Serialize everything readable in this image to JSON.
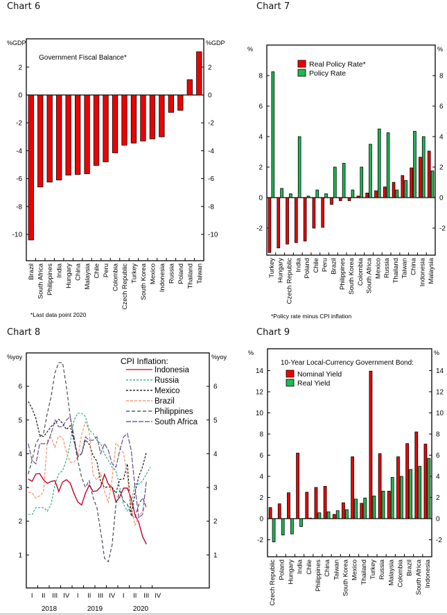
{
  "panels": {
    "chart6_title": "Chart 6",
    "chart7_title": "Chart 7",
    "chart8_title": "Chart 8",
    "chart9_title": "Chart 9"
  },
  "colors": {
    "red": "#ee0000",
    "green": "#1db954",
    "indonesia": "#c0002a",
    "russia": "#1aa37a",
    "mexico": "#000000",
    "brazil": "#f08a5a",
    "philippines": "#3a3a4a",
    "south_africa": "#5a3d8a"
  },
  "chart_data": [
    {
      "id": "chart6",
      "type": "bar",
      "title": "Government Fiscal Balance*",
      "ylabel_left": "%GDP",
      "ylabel_right": "%GDP",
      "ylim": [
        -12,
        3.5
      ],
      "yticks": [
        2,
        0,
        -2,
        -4,
        -6,
        -8,
        -10
      ],
      "footnote": "*Last data point 2020",
      "categories": [
        "Brazil",
        "South Africa",
        "Philippines",
        "India",
        "Hungary",
        "China",
        "Malaysia",
        "Chile",
        "Peru",
        "Colombia",
        "Czech Republic",
        "Turkey",
        "South Korea",
        "Mexico",
        "Indonesia",
        "Russia",
        "Poland",
        "Thailand",
        "Taiwan"
      ],
      "series": [
        {
          "name": "Government Fiscal Balance",
          "color": "#ee0000",
          "values": [
            -10.4,
            -6.6,
            -6.25,
            -6.1,
            -5.75,
            -5.7,
            -5.65,
            -5.05,
            -4.8,
            -4.15,
            -3.6,
            -3.45,
            -3.3,
            -3.15,
            -3.0,
            -1.25,
            -1.1,
            1.1,
            3.1
          ]
        }
      ]
    },
    {
      "id": "chart7",
      "type": "bar",
      "title": "",
      "ylabel_left": "%",
      "ylabel_right": "%",
      "ylim": [
        -3.8,
        10
      ],
      "yticks": [
        8,
        6,
        4,
        2,
        0,
        -2
      ],
      "footnote": "*Policy rate minus CPI inflation",
      "legend": [
        "Real Policy Rate*",
        "Policy Rate"
      ],
      "legend_position": "top-left",
      "categories": [
        "Turkey",
        "Hungary",
        "Czech Republic",
        "India",
        "Poland",
        "Chile",
        "Peru",
        "Brazil",
        "Philippines",
        "South Korea",
        "Colombia",
        "South Africa",
        "Mexico",
        "Russia",
        "Thailand",
        "Taiwan",
        "China",
        "Indonesia",
        "Malaysia"
      ],
      "series": [
        {
          "name": "Real Policy Rate*",
          "color": "#ee0000",
          "values": [
            -3.6,
            -3.3,
            -3.05,
            -2.95,
            -2.85,
            -2.0,
            -1.95,
            -0.45,
            -0.2,
            -0.2,
            0.1,
            0.3,
            0.45,
            0.7,
            1.0,
            1.45,
            1.95,
            2.65,
            3.05
          ]
        },
        {
          "name": "Policy Rate",
          "color": "#1db954",
          "values": [
            8.25,
            0.6,
            0.25,
            4.0,
            0.1,
            0.5,
            0.25,
            2.0,
            2.25,
            0.5,
            2.0,
            3.5,
            4.5,
            4.25,
            0.5,
            1.125,
            4.35,
            4.0,
            1.75
          ]
        }
      ]
    },
    {
      "id": "chart8",
      "type": "line",
      "title": "CPI Inflation:",
      "ylabel_left": "%yoy",
      "ylabel_right": "%yoy",
      "ylim": [
        0,
        6.9
      ],
      "yticks": [
        6,
        5,
        4,
        3,
        2,
        1
      ],
      "xlim_months": [
        0,
        48
      ],
      "quarter_labels": [
        "I",
        "II",
        "III",
        "IV",
        "I",
        "II",
        "III",
        "IV",
        "I",
        "II",
        "III",
        "IV"
      ],
      "year_labels": [
        "2018",
        "2019",
        "2020"
      ],
      "legend_position": "top-right",
      "series": [
        {
          "name": "Indonesia",
          "key": "indonesia",
          "dash": "",
          "values": [
            3.25,
            3.18,
            3.4,
            3.41,
            3.23,
            3.12,
            3.18,
            3.2,
            2.88,
            3.16,
            3.23,
            3.13,
            2.82,
            2.57,
            2.48,
            2.83,
            3.07,
            2.88,
            2.9,
            3.02,
            3.39,
            3.1,
            3.0,
            2.57,
            2.72,
            2.98,
            2.98,
            2.67,
            2.19,
            1.96,
            1.54,
            1.32
          ]
        },
        {
          "name": "Russia",
          "key": "russia",
          "dash": "3,2",
          "values": [
            2.2,
            2.2,
            2.4,
            2.4,
            2.4,
            2.3,
            2.5,
            3.1,
            3.4,
            3.5,
            3.8,
            4.3,
            5.0,
            5.2,
            5.2,
            5.1,
            4.7,
            4.6,
            4.4,
            4.3,
            4.0,
            3.8,
            3.6,
            3.5,
            3.0,
            2.5,
            2.3,
            2.5,
            3.1,
            3.1,
            3.2,
            3.4,
            3.6
          ]
        },
        {
          "name": "Mexico",
          "key": "mexico",
          "dash": "3,2",
          "values": [
            5.55,
            5.34,
            5.04,
            4.55,
            4.51,
            4.65,
            4.81,
            4.9,
            5.02,
            4.9,
            4.72,
            4.83,
            4.37,
            3.94,
            4.0,
            4.41,
            4.28,
            3.95,
            3.78,
            3.16,
            3.0,
            3.02,
            3.0,
            2.83,
            3.24,
            3.25,
            3.7,
            2.15,
            2.84,
            3.33,
            3.62,
            4.05
          ]
        },
        {
          "name": "Brazil",
          "key": "brazil",
          "dash": "4,2",
          "values": [
            2.86,
            2.84,
            2.68,
            2.76,
            2.86,
            4.39,
            4.48,
            4.19,
            4.53,
            4.48,
            4.05,
            3.75,
            3.75,
            3.89,
            4.58,
            4.94,
            4.66,
            3.37,
            3.22,
            3.43,
            2.89,
            2.54,
            3.27,
            4.31,
            4.19,
            4.01,
            3.3,
            2.4,
            1.88,
            2.13,
            2.31,
            2.44
          ]
        },
        {
          "name": "Philippines",
          "key": "philippines",
          "dash": "5,3",
          "values": [
            3.4,
            3.8,
            4.3,
            4.5,
            4.6,
            5.2,
            5.7,
            6.4,
            6.7,
            6.7,
            6.0,
            5.1,
            4.4,
            3.8,
            3.3,
            3.0,
            3.2,
            2.7,
            2.4,
            1.7,
            0.9,
            0.8,
            1.3,
            2.5,
            2.9,
            2.6,
            2.5,
            2.2,
            2.1,
            2.5,
            2.7,
            2.4
          ]
        },
        {
          "name": "South Africa",
          "key": "south_africa",
          "dash": "7,2",
          "values": [
            4.3,
            3.8,
            3.7,
            4.3,
            4.3,
            4.3,
            4.6,
            5.0,
            4.8,
            4.8,
            5.0,
            5.1,
            4.5,
            3.9,
            4.0,
            4.5,
            4.4,
            4.4,
            4.5,
            4.0,
            4.3,
            4.1,
            3.7,
            3.6,
            4.1,
            4.5,
            4.6,
            4.1,
            3.0,
            2.1,
            2.2,
            3.2
          ]
        }
      ]
    },
    {
      "id": "chart9",
      "type": "bar",
      "title": "10-Year Local-Currency Government Bond:",
      "ylabel_left": "%",
      "ylabel_right": "%",
      "ylim": [
        -4,
        15.5
      ],
      "yticks": [
        14,
        12,
        10,
        8,
        6,
        4,
        2,
        0,
        -2
      ],
      "legend": [
        "Nominal Yield",
        "Real Yield"
      ],
      "legend_position": "top-left",
      "categories": [
        "Czech Republic",
        "Poland",
        "Hungary",
        "India",
        "Chile",
        "Philippines",
        "China",
        "Taiwan",
        "South Korea",
        "Mexico",
        "Thailand",
        "Turkey",
        "Russia",
        "Malaysia",
        "Colombia",
        "Brazil",
        "South Africa",
        "Indonesia"
      ],
      "series": [
        {
          "name": "Nominal Yield",
          "color": "#ee0000",
          "values": [
            1.05,
            1.4,
            2.45,
            6.2,
            2.5,
            2.95,
            3.05,
            0.4,
            1.5,
            5.85,
            1.45,
            13.95,
            6.15,
            2.6,
            5.85,
            7.1,
            8.2,
            7.05
          ]
        },
        {
          "name": "Real Yield",
          "color": "#1db954",
          "values": [
            -2.2,
            -1.55,
            -1.45,
            -0.75,
            0.05,
            0.55,
            0.65,
            0.75,
            0.85,
            1.85,
            1.95,
            2.15,
            2.6,
            3.9,
            4.0,
            4.65,
            4.95,
            5.7
          ]
        }
      ]
    }
  ]
}
